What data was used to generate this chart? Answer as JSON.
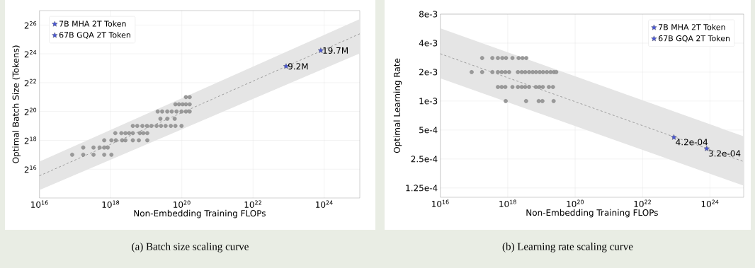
{
  "chart_data": [
    {
      "type": "scatter",
      "xlabel": "Non-Embedding Training FLOPs",
      "ylabel": "Optimal Batch Size (Tokens)",
      "annotations": [
        "(a) Batch size scaling curve"
      ],
      "log": "xy",
      "grid": true,
      "legend": "top left",
      "xlim": [
        1e+16,
        1e+25
      ],
      "ylim": [
        16384,
        134217728
      ],
      "xticks": [
        {
          "value": 1e+16,
          "label": "10$^{16}$"
        },
        {
          "value": 1e+18,
          "label": "10$^{18}$"
        },
        {
          "value": 1e+20,
          "label": "10$^{20}$"
        },
        {
          "value": 1e+22,
          "label": "10$^{22}$"
        },
        {
          "value": 1e+24,
          "label": "10$^{24}$"
        }
      ],
      "yticks": [
        {
          "value": 65536,
          "label": "2$^{16}$"
        },
        {
          "value": 262144,
          "label": "2$^{18}$"
        },
        {
          "value": 1048576,
          "label": "2$^{20}$"
        },
        {
          "value": 4194304,
          "label": "2$^{22}$"
        },
        {
          "value": 16777216,
          "label": "2$^{24}$"
        },
        {
          "value": 67108864,
          "label": "2$^{26}$"
        }
      ],
      "series": [
        {
          "type": "line",
          "color": "#888888",
          "line_style": "dashed",
          "marker": "none",
          "x": [
            1e+16,
            1e+25
          ],
          "values": [
            47600,
            44000000
          ],
          "lower": [
            24000,
            17100000
          ],
          "upper": [
            94600,
            88900000
          ]
        },
        {
          "color": "#9a9a9a",
          "marker": "circle",
          "x": [
            8.3e+16,
            1.7e+17,
            3.3e+17,
            6.6e+17,
            1.05e+18,
            1.7e+17,
            3.3e+17,
            4.9e+17,
            6.6e+17,
            8.3e+17,
            6.6e+17,
            1.05e+18,
            1.4e+18,
            2.1e+18,
            2.6e+18,
            4.2e+18,
            6.2e+18,
            1.07e+19,
            1.35e+18,
            2e+18,
            2.6e+18,
            3.3e+18,
            4.2e+18,
            6.6e+18,
            8.3e+18,
            1.07e+19,
            4.2e+18,
            5.6e+18,
            7.8e+18,
            1.05e+19,
            1.4e+19,
            1.95e+19,
            2.6e+19,
            3.5e+19,
            4.9e+19,
            6.6e+19,
            9.8e+19,
            2.5e+19,
            3.9e+19,
            6.3e+19,
            2.1e+19,
            2.8e+19,
            3.9e+19,
            5.2e+19,
            7.1e+19,
            9.8e+19,
            1.3e+20,
            1.66e+20,
            6.6e+19,
            8.3e+19,
            1.05e+20,
            1.3e+20,
            1.66e+20,
            1.3e+20,
            1.66e+20
          ],
          "values": [
            131072,
            131072,
            131072,
            131072,
            131072,
            185364,
            185364,
            185364,
            185364,
            185364,
            262144,
            262144,
            262144,
            262144,
            262144,
            262144,
            262144,
            262144,
            370728,
            370728,
            370728,
            370728,
            370728,
            370728,
            370728,
            370728,
            524288,
            524288,
            524288,
            524288,
            524288,
            524288,
            524288,
            524288,
            524288,
            524288,
            524288,
            741455,
            741455,
            741455,
            1048576,
            1048576,
            1048576,
            1048576,
            1048576,
            1048576,
            1048576,
            1048576,
            1482910,
            1482910,
            1482910,
            1482910,
            1482910,
            2097152,
            2097152
          ]
        },
        {
          "name": "7B MHA 2T Token",
          "color": "#4a58d8",
          "marker": "star",
          "x": [
            8.5e+22
          ],
          "values": [
            9200000
          ],
          "value_labels": [
            "9.2M"
          ]
        },
        {
          "name": "67B GQA 2T Token",
          "color": "#4a58d8",
          "marker": "star",
          "x": [
            8e+23
          ],
          "values": [
            19700000
          ],
          "value_labels": [
            "19.7M"
          ]
        }
      ]
    },
    {
      "type": "scatter",
      "xlabel": "Non-Embedding Training FLOPs",
      "ylabel": "Optimal Learning Rate",
      "annotations": [
        "(b) Learning rate scaling curve"
      ],
      "log": "xy",
      "grid": true,
      "legend": "top right",
      "xlim": [
        1e+16,
        1e+25
      ],
      "ylim": [
        0.0001,
        0.008
      ],
      "xticks": [
        {
          "value": 1e+16,
          "label": "10$^{16}$"
        },
        {
          "value": 1e+18,
          "label": "10$^{18}$"
        },
        {
          "value": 1e+20,
          "label": "10$^{20}$"
        },
        {
          "value": 1e+22,
          "label": "10$^{22}$"
        },
        {
          "value": 1e+24,
          "label": "10$^{24}$"
        }
      ],
      "yticks": [
        {
          "value": 0.000125,
          "label": "1.25e-4"
        },
        {
          "value": 0.00025,
          "label": "2.5e-4"
        },
        {
          "value": 0.0005,
          "label": "5e-4"
        },
        {
          "value": 0.001,
          "label": "1e-3"
        },
        {
          "value": 0.002,
          "label": "2e-3"
        },
        {
          "value": 0.004,
          "label": "4e-3"
        },
        {
          "value": 0.008,
          "label": "8e-3"
        }
      ],
      "series": [
        {
          "type": "line",
          "color": "#888888",
          "line_style": "dashed",
          "marker": "none",
          "x": [
            1e+16,
            1e+25
          ],
          "values": [
            0.0031,
            0.000235
          ],
          "lower": [
            0.00172,
            0.000132
          ],
          "upper": [
            0.0057,
            0.00043
          ]
        },
        {
          "color": "#9a9a9a",
          "marker": "circle",
          "x": [
            1.74e+17,
            3.5e+17,
            5.1e+17,
            6.9e+17,
            8.9e+17,
            1.38e+18,
            2.1e+18,
            2.75e+18,
            3.55e+18,
            8.5e+16,
            1.74e+17,
            3.5e+17,
            5.1e+17,
            6.6e+17,
            8.5e+17,
            1.1e+18,
            2e+18,
            2.6e+18,
            3.3e+18,
            4.3e+18,
            5.5e+18,
            6.9e+18,
            8.9e+18,
            1.12e+19,
            1.45e+19,
            1.86e+19,
            2.34e+19,
            2.75e+19,
            5.1e+17,
            6.6e+17,
            8.5e+17,
            1.38e+18,
            2e+18,
            2.6e+18,
            3.3e+18,
            4.3e+18,
            6.8e+18,
            8.7e+18,
            1.1e+19,
            1.66e+19,
            2.2e+19,
            8.7e+17,
            3.5e+18,
            8.3e+18,
            1.07e+19,
            2.3e+19
          ],
          "values": [
            0.0028,
            0.0028,
            0.0028,
            0.0028,
            0.0028,
            0.0028,
            0.0028,
            0.0028,
            0.0028,
            0.002,
            0.002,
            0.002,
            0.002,
            0.002,
            0.002,
            0.002,
            0.002,
            0.002,
            0.002,
            0.002,
            0.002,
            0.002,
            0.002,
            0.002,
            0.002,
            0.002,
            0.002,
            0.002,
            0.0014,
            0.0014,
            0.0014,
            0.0014,
            0.0014,
            0.0014,
            0.0014,
            0.0014,
            0.0014,
            0.0014,
            0.0014,
            0.0014,
            0.0014,
            0.001,
            0.001,
            0.001,
            0.001,
            0.001
          ]
        },
        {
          "name": "7B MHA 2T Token",
          "color": "#4a58d8",
          "marker": "star",
          "x": [
            8.5e+22
          ],
          "values": [
            0.00042
          ],
          "value_labels": [
            "4.2e-04"
          ]
        },
        {
          "name": "67B GQA 2T Token",
          "color": "#4a58d8",
          "marker": "star",
          "x": [
            8e+23
          ],
          "values": [
            0.00032
          ],
          "value_labels": [
            "3.2e-04"
          ]
        }
      ]
    }
  ]
}
